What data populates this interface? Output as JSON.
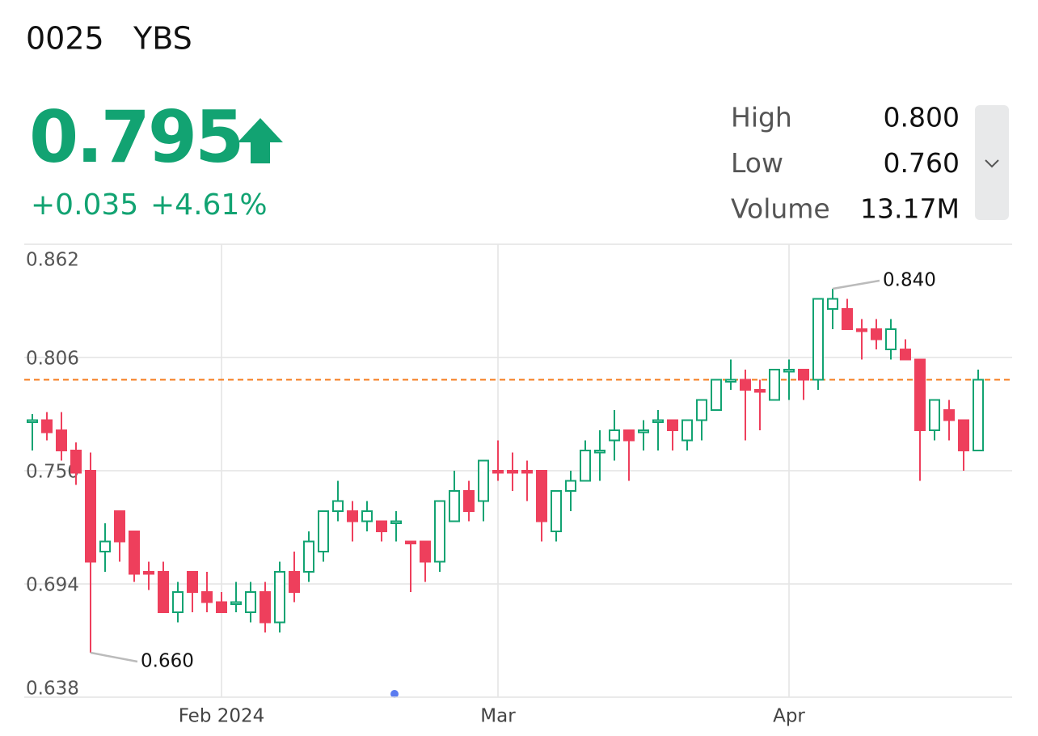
{
  "header": {
    "symbol": "0025",
    "name": "YBS",
    "price": "0.795",
    "change": "+0.035",
    "change_pct": "+4.61%"
  },
  "stats": [
    {
      "label": "High",
      "value": "0.800"
    },
    {
      "label": "Low",
      "value": "0.760"
    },
    {
      "label": "Volume",
      "value": "13.17M"
    }
  ],
  "chart_data": {
    "type": "candlestick",
    "categories": [
      null,
      null,
      null,
      null,
      null,
      null,
      null,
      null,
      null,
      null,
      null,
      null,
      null,
      "Feb 2024",
      null,
      null,
      null,
      null,
      null,
      null,
      null,
      null,
      null,
      null,
      null,
      null,
      null,
      null,
      null,
      null,
      null,
      null,
      "Mar",
      null,
      null,
      null,
      null,
      null,
      null,
      null,
      null,
      null,
      null,
      null,
      null,
      null,
      null,
      null,
      null,
      null,
      null,
      null,
      "Apr",
      null,
      null,
      null,
      null,
      null,
      null,
      null,
      null,
      null,
      null,
      null,
      null,
      null
    ],
    "open": [
      0.774,
      0.775,
      0.77,
      0.76,
      0.75,
      0.71,
      0.73,
      0.72,
      0.7,
      0.7,
      0.68,
      0.7,
      0.69,
      0.685,
      0.684,
      0.68,
      0.69,
      0.675,
      0.7,
      0.7,
      0.71,
      0.73,
      0.73,
      0.725,
      0.725,
      0.724,
      0.715,
      0.715,
      0.705,
      0.725,
      0.74,
      0.735,
      0.75,
      0.75,
      0.75,
      0.75,
      0.72,
      0.74,
      0.745,
      0.759,
      0.765,
      0.77,
      0.769,
      0.774,
      0.775,
      0.765,
      0.775,
      0.78,
      0.794,
      0.795,
      0.79,
      0.785,
      0.799,
      0.8,
      0.795,
      0.83,
      0.83,
      0.82,
      0.82,
      0.81,
      0.81,
      0.805,
      0.77,
      0.78,
      0.775,
      0.76
    ],
    "high": [
      0.778,
      0.779,
      0.779,
      0.764,
      0.759,
      0.724,
      0.73,
      0.72,
      0.705,
      0.705,
      0.695,
      0.7,
      0.7,
      0.69,
      0.695,
      0.695,
      0.695,
      0.705,
      0.71,
      0.72,
      0.73,
      0.745,
      0.735,
      0.735,
      0.725,
      0.73,
      0.715,
      0.715,
      0.735,
      0.75,
      0.745,
      0.755,
      0.765,
      0.759,
      0.755,
      0.75,
      0.74,
      0.75,
      0.765,
      0.77,
      0.78,
      0.77,
      0.775,
      0.78,
      0.775,
      0.775,
      0.785,
      0.795,
      0.805,
      0.8,
      0.795,
      0.8,
      0.805,
      0.8,
      0.835,
      0.84,
      0.835,
      0.825,
      0.825,
      0.825,
      0.815,
      0.805,
      0.785,
      0.785,
      0.775,
      0.8
    ],
    "low": [
      0.76,
      0.765,
      0.755,
      0.743,
      0.66,
      0.7,
      0.705,
      0.695,
      0.691,
      0.68,
      0.675,
      0.68,
      0.68,
      0.68,
      0.68,
      0.675,
      0.67,
      0.67,
      0.685,
      0.695,
      0.705,
      0.725,
      0.715,
      0.72,
      0.715,
      0.715,
      0.69,
      0.695,
      0.7,
      0.725,
      0.725,
      0.725,
      0.745,
      0.74,
      0.735,
      0.715,
      0.715,
      0.73,
      0.745,
      0.745,
      0.755,
      0.745,
      0.76,
      0.76,
      0.76,
      0.76,
      0.765,
      0.78,
      0.79,
      0.765,
      0.77,
      0.785,
      0.785,
      0.785,
      0.79,
      0.82,
      0.82,
      0.805,
      0.81,
      0.805,
      0.805,
      0.745,
      0.765,
      0.765,
      0.75,
      0.76
    ],
    "close": [
      0.775,
      0.769,
      0.76,
      0.749,
      0.705,
      0.715,
      0.715,
      0.699,
      0.699,
      0.68,
      0.69,
      0.69,
      0.685,
      0.68,
      0.685,
      0.69,
      0.675,
      0.7,
      0.69,
      0.715,
      0.73,
      0.735,
      0.725,
      0.73,
      0.72,
      0.725,
      0.714,
      0.705,
      0.735,
      0.74,
      0.73,
      0.755,
      0.749,
      0.749,
      0.749,
      0.725,
      0.74,
      0.745,
      0.76,
      0.76,
      0.77,
      0.765,
      0.77,
      0.775,
      0.77,
      0.775,
      0.785,
      0.795,
      0.795,
      0.79,
      0.789,
      0.8,
      0.8,
      0.795,
      0.835,
      0.835,
      0.82,
      0.819,
      0.815,
      0.82,
      0.805,
      0.77,
      0.785,
      0.775,
      0.76,
      0.795
    ],
    "up_color": "#12a372",
    "down_color": "#ee3f5c",
    "ylim": [
      0.638,
      0.862
    ],
    "yticks": [
      0.638,
      0.694,
      {
        "value": 0.75,
        "label": "0.750"
      },
      0.806,
      0.862
    ],
    "reference_line": {
      "value": 0.795,
      "color": "#f57c1f"
    },
    "annotations": [
      {
        "value": 0.84,
        "label": "0.840"
      },
      {
        "value": 0.66,
        "label": "0.660"
      }
    ],
    "grid": true
  }
}
